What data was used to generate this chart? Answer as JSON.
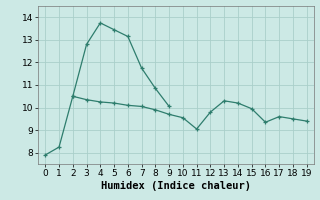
{
  "xlabel": "Humidex (Indice chaleur)",
  "line_color": "#2e7d6d",
  "bg_color": "#cce9e5",
  "grid_color": "#aacfca",
  "tick_fontsize": 6.5,
  "label_fontsize": 7.5,
  "ylim": [
    7.5,
    14.5
  ],
  "xlim": [
    -0.5,
    19.5
  ],
  "upper_line_x": [
    2,
    3,
    4,
    5,
    6,
    7,
    8,
    9
  ],
  "upper_line_y": [
    10.5,
    12.8,
    13.75,
    13.45,
    13.15,
    11.75,
    10.85,
    10.05
  ],
  "lower_line_x": [
    0,
    1,
    2,
    3,
    4,
    5,
    6,
    7,
    8,
    9,
    10,
    11,
    12,
    13,
    14,
    15,
    16,
    17,
    18,
    19
  ],
  "lower_line_y": [
    7.9,
    8.25,
    10.5,
    10.35,
    10.25,
    10.2,
    10.1,
    10.05,
    9.9,
    9.7,
    9.55,
    9.05,
    9.8,
    10.3,
    10.2,
    9.95,
    9.35,
    9.6,
    9.5,
    9.4
  ],
  "yticks": [
    8,
    9,
    10,
    11,
    12,
    13,
    14
  ]
}
